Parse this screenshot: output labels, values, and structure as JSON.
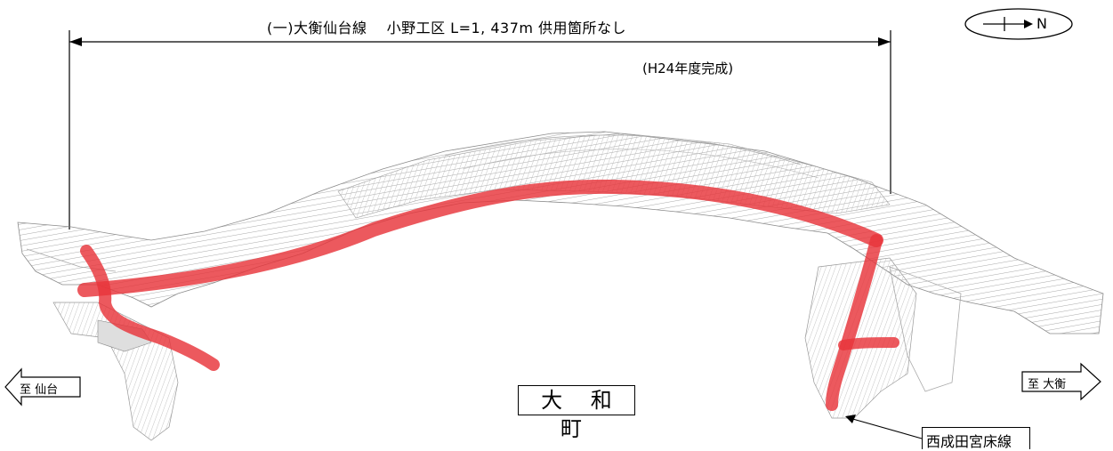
{
  "title": "(一)大衡仙台線　 小野工区  L=1, 437m  供用箇所なし",
  "completion_note": "(H24年度完成)",
  "compass": {
    "label": "N"
  },
  "direction_left": "至 仙台",
  "direction_right": "至 大衡",
  "town_label": "大 和 町",
  "crossing_route_label": "西成田宮床線",
  "colors": {
    "route_highlight": "#e8343a",
    "map_lines": "#888888"
  }
}
